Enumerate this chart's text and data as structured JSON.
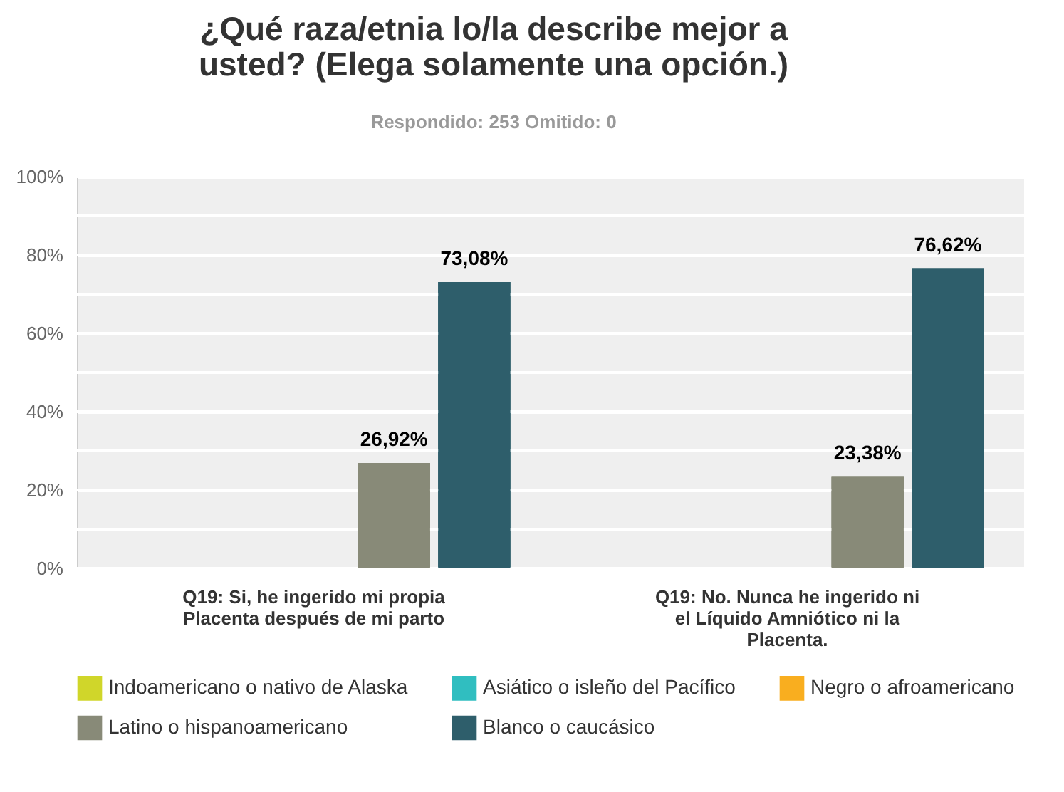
{
  "chart_data": {
    "type": "bar",
    "title": "¿Qué raza/etnia lo/la describe mejor a usted? (Elega solamente una opción.)",
    "subtitle": "Respondido: 253    Omitido: 0",
    "categories": [
      "Q19: Si, he ingerido mi propia Placenta después de mi parto",
      "Q19: No. Nunca he ingerido ni el Líquido Amniótico ni la Placenta."
    ],
    "series": [
      {
        "name": "Indoamericano o nativo de Alaska",
        "color": "#d0d62a",
        "values": [
          0,
          0
        ],
        "value_labels": [
          null,
          null
        ]
      },
      {
        "name": "Asiático o isleño del Pacífico",
        "color": "#30bec0",
        "values": [
          0,
          0
        ],
        "value_labels": [
          null,
          null
        ]
      },
      {
        "name": "Negro o afroamericano",
        "color": "#f9ae1f",
        "values": [
          0,
          0
        ],
        "value_labels": [
          null,
          null
        ]
      },
      {
        "name": "Latino o hispanoamericano",
        "color": "#888a78",
        "values": [
          26.92,
          23.38
        ],
        "value_labels": [
          "26,92%",
          "23,38%"
        ]
      },
      {
        "name": "Blanco o caucásico",
        "color": "#2e5e6b",
        "values": [
          73.08,
          76.62
        ],
        "value_labels": [
          "73,08%",
          "76,62%"
        ]
      }
    ],
    "ylim": [
      0,
      100
    ],
    "yticks": [
      {
        "value": 0,
        "label": "0%"
      },
      {
        "value": 10,
        "label": null
      },
      {
        "value": 20,
        "label": "20%"
      },
      {
        "value": 30,
        "label": null
      },
      {
        "value": 40,
        "label": "40%"
      },
      {
        "value": 50,
        "label": null
      },
      {
        "value": 60,
        "label": "60%"
      },
      {
        "value": 70,
        "label": null
      },
      {
        "value": 80,
        "label": "80%"
      },
      {
        "value": 90,
        "label": null
      },
      {
        "value": 100,
        "label": "100%"
      }
    ],
    "grid": "y",
    "legend": "bottom"
  }
}
